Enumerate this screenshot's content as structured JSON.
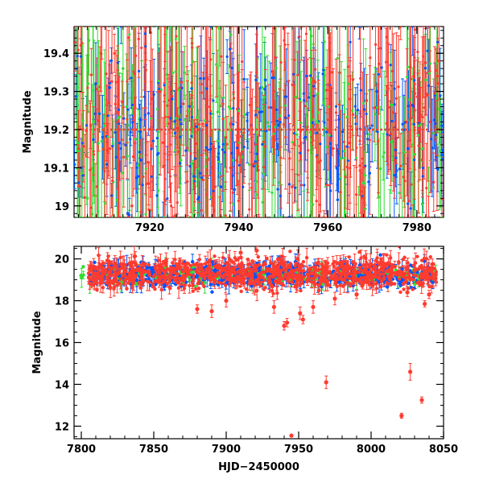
{
  "chart_data": [
    {
      "type": "scatter",
      "panel": "top",
      "title": "",
      "xlabel": "",
      "ylabel": "Magnitude",
      "xlim": [
        7903,
        7986
      ],
      "ylim": [
        19.47,
        18.97
      ],
      "y_inverted": true,
      "xticks": [
        7920,
        7940,
        7960,
        7980
      ],
      "yticks": [
        19,
        19.1,
        19.2,
        19.3,
        19.4
      ],
      "grid": false,
      "legend": "none",
      "series": [
        {
          "color": "#0055ff",
          "x_range": [
            7903,
            7986
          ],
          "y_center": 19.2,
          "y_spread": 0.15,
          "error_typical": 0.06,
          "sample": [
            [
              7905,
              19.08
            ],
            [
              7911,
              19.31
            ],
            [
              7918,
              19.12
            ],
            [
              7925,
              19.28
            ],
            [
              7936,
              19.05
            ],
            [
              7946,
              19.33
            ],
            [
              7955,
              19.18
            ],
            [
              7962,
              19.1
            ],
            [
              7971,
              19.3
            ],
            [
              7978,
              19.15
            ]
          ]
        },
        {
          "color": "#33dd33",
          "x_range": [
            7903,
            7986
          ],
          "y_center": 19.2,
          "y_spread": 0.2,
          "error_typical": 0.12,
          "sample": [
            [
              7906,
              19.02
            ],
            [
              7914,
              19.36
            ],
            [
              7927,
              19.12
            ],
            [
              7940,
              19.25
            ],
            [
              7958,
              19.2
            ],
            [
              7968,
              19.06
            ],
            [
              7982,
              19.33
            ]
          ]
        },
        {
          "color": "#ff3b2f",
          "x_range": [
            7903,
            7986
          ],
          "y_center": 19.2,
          "y_spread": 0.2,
          "error_typical": 0.1,
          "sample": [
            [
              7904,
              19.15
            ],
            [
              7909,
              19.4
            ],
            [
              7916,
              19.0
            ],
            [
              7922,
              19.3
            ],
            [
              7934,
              19.1
            ],
            [
              7944,
              19.35
            ],
            [
              7952,
              19.05
            ],
            [
              7965,
              19.28
            ],
            [
              7975,
              19.12
            ],
            [
              7985,
              19.38
            ]
          ]
        }
      ]
    },
    {
      "type": "scatter",
      "panel": "bottom",
      "title": "",
      "xlabel": "HJD−2450000",
      "ylabel": "Magnitude",
      "xlim": [
        7795,
        8050
      ],
      "ylim": [
        20.6,
        11.4
      ],
      "y_inverted": true,
      "xticks": [
        7800,
        7850,
        7900,
        7950,
        8000,
        8050
      ],
      "yticks": [
        12,
        14,
        16,
        18,
        20
      ],
      "grid": false,
      "legend": "none",
      "series": [
        {
          "color": "#0055ff",
          "x_range": [
            7805,
            8045
          ],
          "y_center": 19.25,
          "y_spread": 0.35
        },
        {
          "color": "#33dd33",
          "x_range": [
            7800,
            8045
          ],
          "y_center": 19.2,
          "y_spread": 0.25,
          "points": [
            [
              7800,
              19.2
            ],
            [
              7838,
              18.8
            ],
            [
              7882,
              19.0
            ],
            [
              8000,
              19.0
            ],
            [
              8044,
              19.1
            ]
          ]
        },
        {
          "color": "#ff3b2f",
          "x_range": [
            7805,
            8045
          ],
          "y_center": 19.3,
          "y_spread": 0.5,
          "outliers": [
            [
              7945,
              11.55,
              0.05
            ],
            [
              7969,
              14.1,
              0.3
            ],
            [
              8021,
              12.5,
              0.12
            ],
            [
              8027,
              14.6,
              0.4
            ],
            [
              8035,
              13.25,
              0.15
            ],
            [
              7940,
              16.8,
              0.2
            ],
            [
              7942,
              16.95,
              0.2
            ],
            [
              7951,
              17.4,
              0.3
            ],
            [
              7960,
              17.7,
              0.3
            ],
            [
              7890,
              17.5,
              0.3
            ],
            [
              7880,
              17.6,
              0.2
            ],
            [
              7933,
              17.7,
              0.3
            ],
            [
              7900,
              18.0,
              0.3
            ],
            [
              8037,
              17.85,
              0.15
            ],
            [
              8040,
              18.3,
              0.2
            ],
            [
              8025,
              18.4,
              0.2
            ],
            [
              7990,
              18.3,
              0.2
            ],
            [
              7975,
              18.1,
              0.3
            ],
            [
              7953,
              17.1,
              0.2
            ],
            [
              7921,
              20.4,
              0.2
            ],
            [
              7910,
              20.3,
              0.3
            ]
          ]
        }
      ]
    }
  ]
}
